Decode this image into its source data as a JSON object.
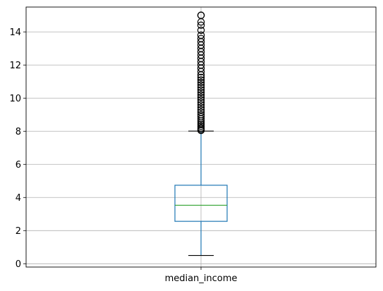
{
  "chart_data": {
    "type": "box",
    "title": "",
    "xlabel": "",
    "ylabel": "",
    "categories": [
      "median_income"
    ],
    "yticks": [
      0,
      2,
      4,
      6,
      8,
      10,
      12,
      14
    ],
    "ylim": [
      -0.2,
      15.5
    ],
    "grid": true,
    "box": {
      "whisker_low": 0.5,
      "q1": 2.56,
      "median": 3.53,
      "q3": 4.74,
      "whisker_high": 8.01
    },
    "outliers": [
      8.05,
      8.12,
      8.2,
      8.3,
      8.4,
      8.5,
      8.62,
      8.75,
      8.88,
      9.0,
      9.15,
      9.3,
      9.45,
      9.6,
      9.75,
      9.9,
      10.05,
      10.2,
      10.35,
      10.5,
      10.65,
      10.8,
      10.95,
      11.1,
      11.25,
      11.4,
      11.6,
      11.8,
      12.0,
      12.2,
      12.4,
      12.6,
      12.8,
      13.0,
      13.2,
      13.4,
      13.6,
      13.8,
      14.1,
      14.4,
      14.6,
      15.0,
      15.0,
      15.0
    ],
    "colors": {
      "box": "#1f77b4",
      "median": "#2ca02c",
      "grid": "#b0b0b0",
      "outlier_edge": "#000000"
    }
  }
}
